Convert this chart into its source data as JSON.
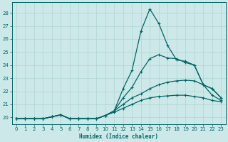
{
  "xlabel": "Humidex (Indice chaleur)",
  "background_color": "#cce8e8",
  "grid_color": "#b0d4d4",
  "line_color": "#006666",
  "xlim": [
    -0.5,
    23.5
  ],
  "ylim": [
    19.5,
    28.8
  ],
  "xticks": [
    0,
    1,
    2,
    3,
    4,
    5,
    6,
    7,
    8,
    9,
    10,
    11,
    12,
    13,
    14,
    15,
    16,
    17,
    18,
    19,
    20,
    21,
    22,
    23
  ],
  "yticks": [
    20,
    21,
    22,
    23,
    24,
    25,
    26,
    27,
    28
  ],
  "line1_x": [
    0,
    1,
    2,
    3,
    4,
    5,
    6,
    7,
    8,
    9,
    10,
    11,
    12,
    13,
    14,
    15,
    16,
    17,
    18,
    19,
    20,
    21,
    22,
    23
  ],
  "line1_y": [
    19.9,
    19.9,
    19.9,
    19.9,
    20.05,
    20.2,
    19.9,
    19.9,
    19.9,
    19.9,
    20.15,
    20.5,
    22.2,
    23.6,
    26.6,
    28.3,
    27.2,
    25.5,
    24.4,
    24.3,
    24.0,
    22.5,
    22.2,
    21.5
  ],
  "line2_x": [
    0,
    1,
    2,
    3,
    4,
    5,
    6,
    7,
    8,
    9,
    10,
    11,
    12,
    13,
    14,
    15,
    16,
    17,
    18,
    19,
    20,
    21,
    22,
    23
  ],
  "line2_y": [
    19.9,
    19.9,
    19.9,
    19.9,
    20.05,
    20.2,
    19.9,
    19.9,
    19.9,
    19.9,
    20.15,
    20.5,
    21.5,
    22.3,
    23.5,
    24.5,
    24.8,
    24.55,
    24.5,
    24.2,
    24.0,
    22.5,
    22.2,
    21.5
  ],
  "line3_x": [
    0,
    1,
    2,
    3,
    4,
    5,
    6,
    7,
    8,
    9,
    10,
    11,
    12,
    13,
    14,
    15,
    16,
    17,
    18,
    19,
    20,
    21,
    22,
    23
  ],
  "line3_y": [
    19.9,
    19.9,
    19.9,
    19.9,
    20.05,
    20.2,
    19.9,
    19.9,
    19.9,
    19.9,
    20.15,
    20.5,
    21.0,
    21.5,
    21.8,
    22.2,
    22.5,
    22.7,
    22.8,
    22.85,
    22.8,
    22.5,
    21.7,
    21.3
  ],
  "line4_x": [
    0,
    1,
    2,
    3,
    4,
    5,
    6,
    7,
    8,
    9,
    10,
    11,
    12,
    13,
    14,
    15,
    16,
    17,
    18,
    19,
    20,
    21,
    22,
    23
  ],
  "line4_y": [
    19.9,
    19.9,
    19.9,
    19.9,
    20.05,
    20.2,
    19.9,
    19.9,
    19.9,
    19.9,
    20.15,
    20.4,
    20.7,
    21.0,
    21.3,
    21.5,
    21.6,
    21.65,
    21.7,
    21.7,
    21.6,
    21.5,
    21.3,
    21.2
  ]
}
